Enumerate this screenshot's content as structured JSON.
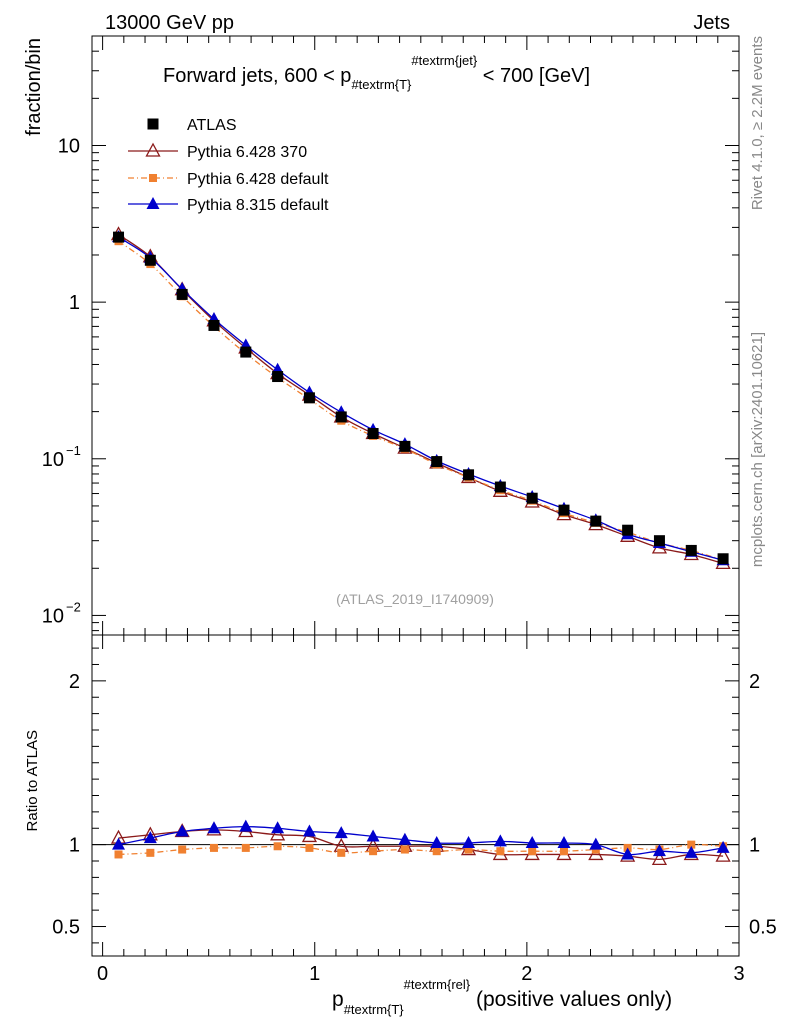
{
  "header": {
    "left": "13000 GeV pp",
    "right": "Jets"
  },
  "side_text": {
    "rivet": "Rivet 4.1.0, ≥ 2.2M events",
    "mcplots": "mcplots.cern.ch [arXiv:2401.10621]"
  },
  "chart_data": {
    "type": "line",
    "title_main": "Forward jets, 600 < p",
    "title_sub": "#textrm{T}",
    "title_sup": "#textrm{jet}",
    "title_end": " < 700 [GeV]",
    "watermark": "(ATLAS_2019_I1740909)",
    "ylabel": "fraction/bin",
    "ratio_ylabel": "Ratio to ATLAS",
    "xlabel_main": "p",
    "xlabel_sub": "#textrm{T}",
    "xlabel_sup": "#textrm{rel}",
    "xlabel_end": " (positive values only)",
    "xlim": [
      -0.05,
      3.0
    ],
    "ylim": [
      0.0075,
      50
    ],
    "yscale": "log",
    "ratio_ylim": [
      0.32,
      2.28
    ],
    "x_ticks": [
      {
        "v": 0,
        "label": "0"
      },
      {
        "v": 1,
        "label": "1"
      },
      {
        "v": 2,
        "label": "2"
      },
      {
        "v": 3,
        "label": "3"
      }
    ],
    "y_ticks": [
      {
        "v": 0.01,
        "base": "10",
        "exp": "−2"
      },
      {
        "v": 0.1,
        "base": "10",
        "exp": "−1"
      },
      {
        "v": 1,
        "base": "1",
        "exp": ""
      },
      {
        "v": 10,
        "base": "10",
        "exp": ""
      }
    ],
    "ratio_ticks": [
      {
        "v": 0.5,
        "label": "0.5"
      },
      {
        "v": 1,
        "label": "1"
      },
      {
        "v": 2,
        "label": "2"
      }
    ],
    "x": [
      0.075,
      0.225,
      0.375,
      0.525,
      0.675,
      0.825,
      0.975,
      1.125,
      1.275,
      1.425,
      1.575,
      1.725,
      1.875,
      2.025,
      2.175,
      2.325,
      2.475,
      2.625,
      2.775,
      2.925
    ],
    "series": [
      {
        "name": "ATLAS",
        "color": "#000000",
        "marker": "square",
        "line": "none",
        "values": [
          2.6,
          1.85,
          1.12,
          0.71,
          0.48,
          0.335,
          0.245,
          0.185,
          0.145,
          0.12,
          0.096,
          0.079,
          0.066,
          0.056,
          0.047,
          0.04,
          0.035,
          0.03,
          0.026,
          0.023
        ]
      },
      {
        "name": "Pythia 6.428 370",
        "color": "#8b1a1a",
        "marker": "triangle-open",
        "line": "solid",
        "values": [
          2.7,
          1.95,
          1.2,
          0.76,
          0.51,
          0.35,
          0.255,
          0.185,
          0.145,
          0.117,
          0.094,
          0.076,
          0.062,
          0.053,
          0.044,
          0.038,
          0.032,
          0.027,
          0.0245,
          0.0215
        ]
      },
      {
        "name": "Pythia 6.428 default",
        "color": "#f08030",
        "marker": "square-small",
        "line": "dashdot",
        "values": [
          2.45,
          1.75,
          1.09,
          0.7,
          0.47,
          0.33,
          0.24,
          0.175,
          0.14,
          0.116,
          0.092,
          0.076,
          0.063,
          0.054,
          0.045,
          0.039,
          0.034,
          0.029,
          0.026,
          0.0225
        ]
      },
      {
        "name": "Pythia 8.315 default",
        "color": "#0000cc",
        "marker": "triangle",
        "line": "solid",
        "values": [
          2.6,
          1.92,
          1.21,
          0.78,
          0.53,
          0.37,
          0.265,
          0.198,
          0.153,
          0.124,
          0.097,
          0.08,
          0.067,
          0.057,
          0.048,
          0.0405,
          0.033,
          0.029,
          0.0255,
          0.0225
        ]
      }
    ],
    "ratios": [
      {
        "name": "Pythia 6.428 370",
        "values": [
          1.04,
          1.06,
          1.08,
          1.09,
          1.08,
          1.06,
          1.05,
          0.99,
          0.99,
          0.99,
          0.99,
          0.97,
          0.94,
          0.94,
          0.94,
          0.94,
          0.93,
          0.91,
          0.94,
          0.93
        ]
      },
      {
        "name": "Pythia 6.428 default",
        "values": [
          0.94,
          0.95,
          0.97,
          0.98,
          0.98,
          0.99,
          0.98,
          0.95,
          0.96,
          0.97,
          0.96,
          0.97,
          0.96,
          0.96,
          0.96,
          0.97,
          0.98,
          0.97,
          1.0,
          0.99
        ]
      },
      {
        "name": "Pythia 8.315 default",
        "values": [
          1.0,
          1.04,
          1.08,
          1.1,
          1.11,
          1.1,
          1.08,
          1.07,
          1.05,
          1.03,
          1.01,
          1.01,
          1.02,
          1.01,
          1.01,
          1.0,
          0.94,
          0.96,
          0.95,
          0.98
        ]
      }
    ]
  }
}
